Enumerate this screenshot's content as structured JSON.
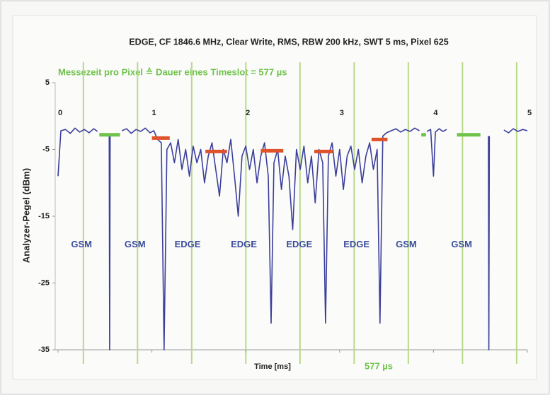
{
  "chart_data": {
    "type": "line",
    "title": "EDGE, CF 1846.6 MHz, Clear Write, RMS, RBW 200 kHz, SWT 5 ms, Pixel 625",
    "subtitle": "Messezeit pro Pixel ≙ Dauer eines Timeslot = 577 µs",
    "x_label": "Time [ms]",
    "y_label": "Analyzer-Pegel (dBm)",
    "slot_note": "577 µs",
    "xlim": [
      0,
      5
    ],
    "xticks": [
      0,
      1,
      2,
      3,
      4,
      5
    ],
    "ylim": [
      -35,
      5
    ],
    "yticks": [
      5,
      -5,
      -15,
      -25,
      -35
    ],
    "x": [
      0,
      0.03,
      0.08,
      0.13,
      0.18,
      0.23,
      0.28,
      0.33,
      0.38,
      0.42,
      0.45,
      0.545,
      0.55,
      0.555,
      0.6,
      0.68,
      0.73,
      0.78,
      0.83,
      0.88,
      0.93,
      0.98,
      1.02,
      1.06,
      1.1,
      1.13,
      1.16,
      1.2,
      1.24,
      1.28,
      1.32,
      1.36,
      1.4,
      1.44,
      1.48,
      1.52,
      1.56,
      1.6,
      1.64,
      1.68,
      1.72,
      1.76,
      1.8,
      1.84,
      1.88,
      1.92,
      1.96,
      2.0,
      2.04,
      2.08,
      2.12,
      2.16,
      2.2,
      2.24,
      2.27,
      2.3,
      2.34,
      2.38,
      2.42,
      2.46,
      2.5,
      2.54,
      2.58,
      2.62,
      2.66,
      2.7,
      2.74,
      2.78,
      2.82,
      2.85,
      2.88,
      2.92,
      2.96,
      3.0,
      3.04,
      3.08,
      3.12,
      3.16,
      3.2,
      3.24,
      3.28,
      3.32,
      3.36,
      3.4,
      3.43,
      3.46,
      3.5,
      3.55,
      3.6,
      3.65,
      3.7,
      3.75,
      3.8,
      3.85,
      3.9,
      3.93,
      3.97,
      4.0,
      4.02,
      4.06,
      4.1,
      4.14,
      4.2,
      4.585,
      4.59,
      4.595,
      4.7,
      4.75,
      4.8,
      4.85,
      4.9,
      4.95,
      5.0
    ],
    "series": [
      {
        "color": "#3b3f9a",
        "values": [
          -9,
          -2.2,
          -2.0,
          -2.6,
          -1.8,
          -2.4,
          -2.0,
          -2.5,
          -1.9,
          -2.3,
          null,
          -3,
          -35,
          -3,
          null,
          -2.2,
          -1.9,
          -2.6,
          -2.0,
          -2.3,
          -1.8,
          -2.5,
          -2.2,
          -3.5,
          -4,
          -35,
          -5,
          -4,
          -7,
          -3.5,
          -8,
          -5,
          -9,
          -4.5,
          -7,
          -5,
          -10,
          -6,
          -4,
          -8,
          -12,
          -5,
          -7,
          -3.5,
          -9,
          -15,
          -6,
          -4.5,
          -8,
          -5,
          -10,
          -6,
          -4,
          -9,
          -31,
          -7,
          -5,
          -11,
          -6,
          -9,
          -17,
          -5,
          -8,
          -4.5,
          -10,
          -6,
          -13,
          -5,
          -7,
          -31,
          -6,
          -4,
          -9,
          -5,
          -11,
          -6,
          -4.5,
          -8,
          -5,
          -10,
          -6,
          -4,
          -8,
          -5,
          -31,
          -3,
          -2.5,
          -2.2,
          -1.9,
          -2.4,
          -2.0,
          -2.3,
          -1.8,
          -2.2,
          null,
          -2.3,
          -2.0,
          -9,
          -2.4,
          -1.9,
          -2.3,
          -2.0,
          null,
          -3,
          -35,
          -3,
          null,
          -2.1,
          -2.5,
          -1.9,
          -2.3,
          -2.0,
          -2.2
        ]
      }
    ],
    "slot_lines": [
      0.27,
      0.847,
      1.424,
      2.001,
      2.578,
      3.155,
      3.732,
      4.309,
      4.886
    ],
    "slot_line_color": "#b9d98a",
    "levels": [
      {
        "x0": 0.44,
        "x1": 0.66,
        "y": -2.8,
        "color": "#6fc24a"
      },
      {
        "x0": 1.0,
        "x1": 1.19,
        "y": -3.3,
        "color": "#e0522a"
      },
      {
        "x0": 1.57,
        "x1": 1.8,
        "y": -5.3,
        "color": "#e0522a"
      },
      {
        "x0": 2.16,
        "x1": 2.4,
        "y": -5.2,
        "color": "#e0522a"
      },
      {
        "x0": 2.73,
        "x1": 2.93,
        "y": -5.3,
        "color": "#e0522a"
      },
      {
        "x0": 3.34,
        "x1": 3.51,
        "y": -3.5,
        "color": "#e0522a"
      },
      {
        "x0": 3.87,
        "x1": 3.92,
        "y": -2.8,
        "color": "#6fc24a"
      },
      {
        "x0": 4.25,
        "x1": 4.5,
        "y": -2.8,
        "color": "#6fc24a"
      }
    ],
    "annotations": [
      {
        "text": "GSM",
        "x": 0.25,
        "y": -19.3
      },
      {
        "text": "GSM",
        "x": 0.82,
        "y": -19.3
      },
      {
        "text": "EDGE",
        "x": 1.38,
        "y": -19.3
      },
      {
        "text": "EDGE",
        "x": 1.98,
        "y": -19.3
      },
      {
        "text": "EDGE",
        "x": 2.57,
        "y": -19.3
      },
      {
        "text": "EDGE",
        "x": 3.18,
        "y": -19.3
      },
      {
        "text": "GSM",
        "x": 3.71,
        "y": -19.3
      },
      {
        "text": "GSM",
        "x": 4.3,
        "y": -19.3
      }
    ],
    "annotation_color": "#3a4d9a"
  }
}
